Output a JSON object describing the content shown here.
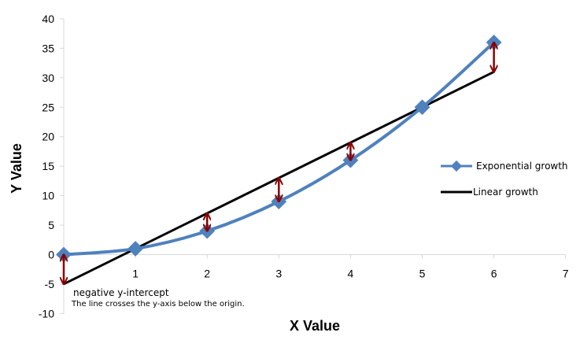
{
  "chart_data": {
    "type": "line",
    "xlabel": "X Value",
    "ylabel": "Y Value",
    "xlim": [
      0,
      7
    ],
    "ylim": [
      -10,
      40
    ],
    "x_ticks": [
      1,
      2,
      3,
      4,
      5,
      6,
      7
    ],
    "y_ticks": [
      -10,
      -5,
      0,
      5,
      10,
      15,
      20,
      25,
      30,
      35,
      40
    ],
    "grid": false,
    "legend_position": "right",
    "series": [
      {
        "name": "Exponential growth",
        "color": "#4F81BD",
        "marker": "diamond",
        "smooth": true,
        "x": [
          0,
          1,
          2,
          3,
          4,
          5,
          6
        ],
        "y": [
          0,
          1,
          4,
          9,
          16,
          25,
          36
        ]
      },
      {
        "name": "Linear growth",
        "color": "#000000",
        "x": [
          0,
          6
        ],
        "y": [
          -5,
          31
        ]
      }
    ],
    "residual_arrows": {
      "color": "#8B0000",
      "x": [
        0,
        2,
        3,
        4,
        6
      ],
      "from_y": [
        0,
        4,
        9,
        16,
        36
      ],
      "to_y": [
        -5,
        7,
        13,
        19,
        31
      ]
    },
    "annotation": {
      "text": "negative y-intercept",
      "subtext": "The line crosses the y-axis below the origin."
    }
  }
}
